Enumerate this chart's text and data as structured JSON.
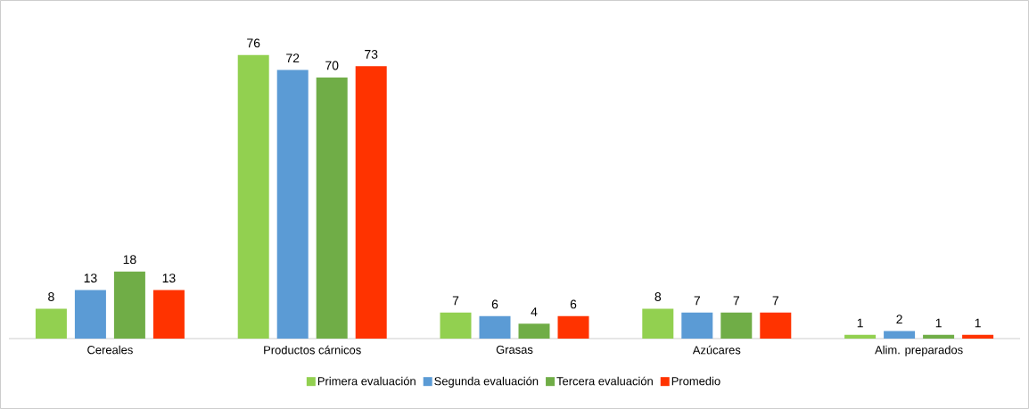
{
  "chart_data": {
    "type": "bar",
    "categories": [
      "Cereales",
      "Productos cárnicos",
      "Grasas",
      "Azúcares",
      "Alim. preparados"
    ],
    "series": [
      {
        "name": "Primera evaluación",
        "color": "#92d050",
        "values": [
          8,
          76,
          7,
          8,
          1
        ]
      },
      {
        "name": "Segunda evaluación",
        "color": "#5b9bd5",
        "values": [
          13,
          72,
          6,
          7,
          2
        ]
      },
      {
        "name": "Tercera evaluación",
        "color": "#70ad47",
        "values": [
          18,
          70,
          4,
          7,
          1
        ]
      },
      {
        "name": "Promedio",
        "color": "#ff3300",
        "values": [
          13,
          73,
          6,
          7,
          1
        ]
      }
    ],
    "data_labels": true,
    "legend": "bottom"
  }
}
